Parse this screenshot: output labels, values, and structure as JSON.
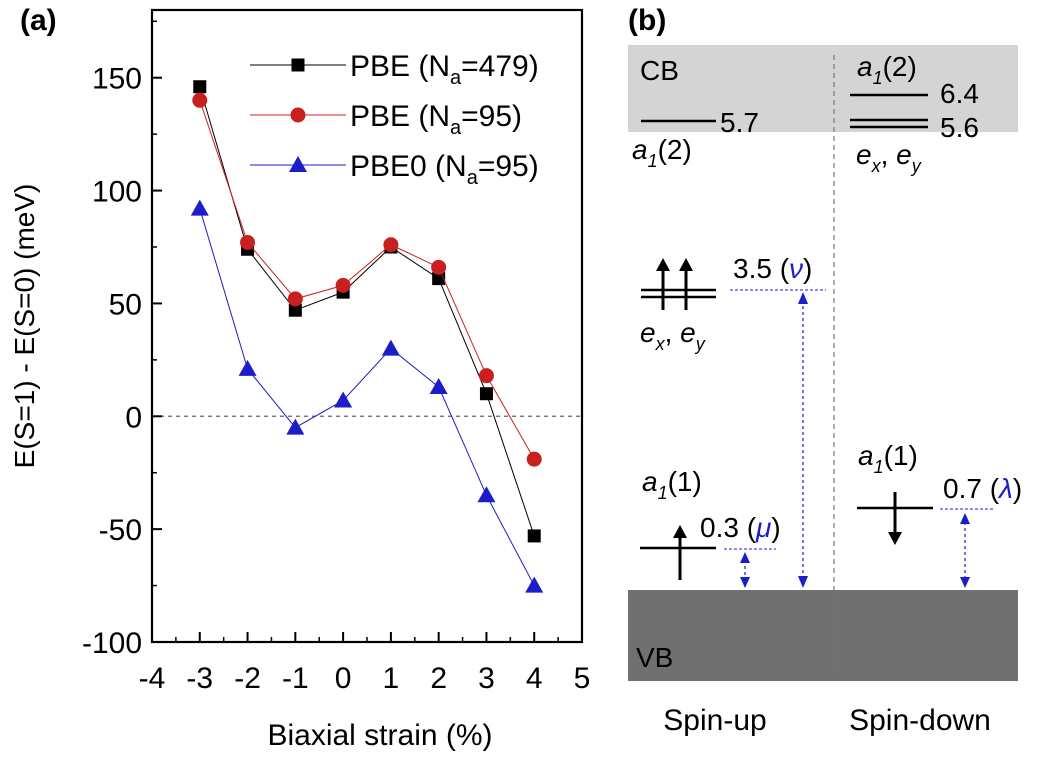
{
  "panel_a": {
    "label": "(a)",
    "chart_data": {
      "type": "line",
      "xlabel": "Biaxial strain (%)",
      "ylabel": "E(S=1) - E(S=0) (meV)",
      "xlim": [
        -4,
        5
      ],
      "ylim": [
        -100,
        180
      ],
      "xticks": [
        -4,
        -3,
        -2,
        -1,
        0,
        1,
        2,
        3,
        4,
        5
      ],
      "xtick_labels": [
        "-4",
        "-3",
        "-2",
        "-1",
        "0",
        "1",
        "2",
        "3",
        "4",
        "5"
      ],
      "yticks": [
        -100,
        -50,
        0,
        50,
        100,
        150
      ],
      "ytick_labels": [
        "-100",
        "-50",
        "0",
        "50",
        "100",
        "150"
      ],
      "zero_line": true,
      "legend_position": "top-right",
      "series": [
        {
          "name": "PBE (N",
          "sub": "a",
          "name_tail": "=479)",
          "color": "#000000",
          "marker": "square",
          "x": [
            -3,
            -2,
            -1,
            0,
            1,
            2,
            3,
            4
          ],
          "y": [
            146,
            74,
            47,
            55,
            75,
            61,
            10,
            -53
          ]
        },
        {
          "name": "PBE (N",
          "sub": "a",
          "name_tail": "=95)",
          "color": "#c8201e",
          "marker": "circle",
          "x": [
            -3,
            -2,
            -1,
            0,
            1,
            2,
            3,
            4
          ],
          "y": [
            140,
            77,
            52,
            58,
            76,
            66,
            18,
            -19
          ]
        },
        {
          "name": "PBE0 (N",
          "sub": "a",
          "name_tail": "=95)",
          "color": "#1c1cc8",
          "marker": "triangle",
          "x": [
            -3,
            -2,
            -1,
            0,
            1,
            2,
            3,
            4
          ],
          "y": [
            92,
            21,
            -5,
            7,
            30,
            13,
            -35,
            -75
          ]
        }
      ]
    }
  },
  "panel_b": {
    "label": "(b)",
    "cb_label": "CB",
    "vb_label": "VB",
    "spin_up": "Spin-up",
    "spin_down": "Spin-down",
    "band_colors": {
      "cb": "#d4d4d4",
      "vb": "#707070"
    },
    "up": {
      "a1_2": {
        "sym": "a",
        "sub": "1",
        "idx": "(2)",
        "value": "5.7"
      },
      "ex_ey": {
        "e1": "e",
        "s1": "x",
        "sep": ", ",
        "e2": "e",
        "s2": "y",
        "value": "3.5",
        "param": "ν"
      },
      "a1_1": {
        "sym": "a",
        "sub": "1",
        "idx": "(1)",
        "value": "0.3",
        "param": "μ"
      }
    },
    "down": {
      "a1_2": {
        "sym": "a",
        "sub": "1",
        "idx": "(2)",
        "value": "6.4"
      },
      "ex_ey": {
        "e1": "e",
        "s1": "x",
        "sep": ", ",
        "e2": "e",
        "s2": "y",
        "value": "5.6"
      },
      "a1_1": {
        "sym": "a",
        "sub": "1",
        "idx": "(1)",
        "value": "0.7",
        "param": "λ"
      }
    },
    "accent_color": "#1c1cc8"
  }
}
